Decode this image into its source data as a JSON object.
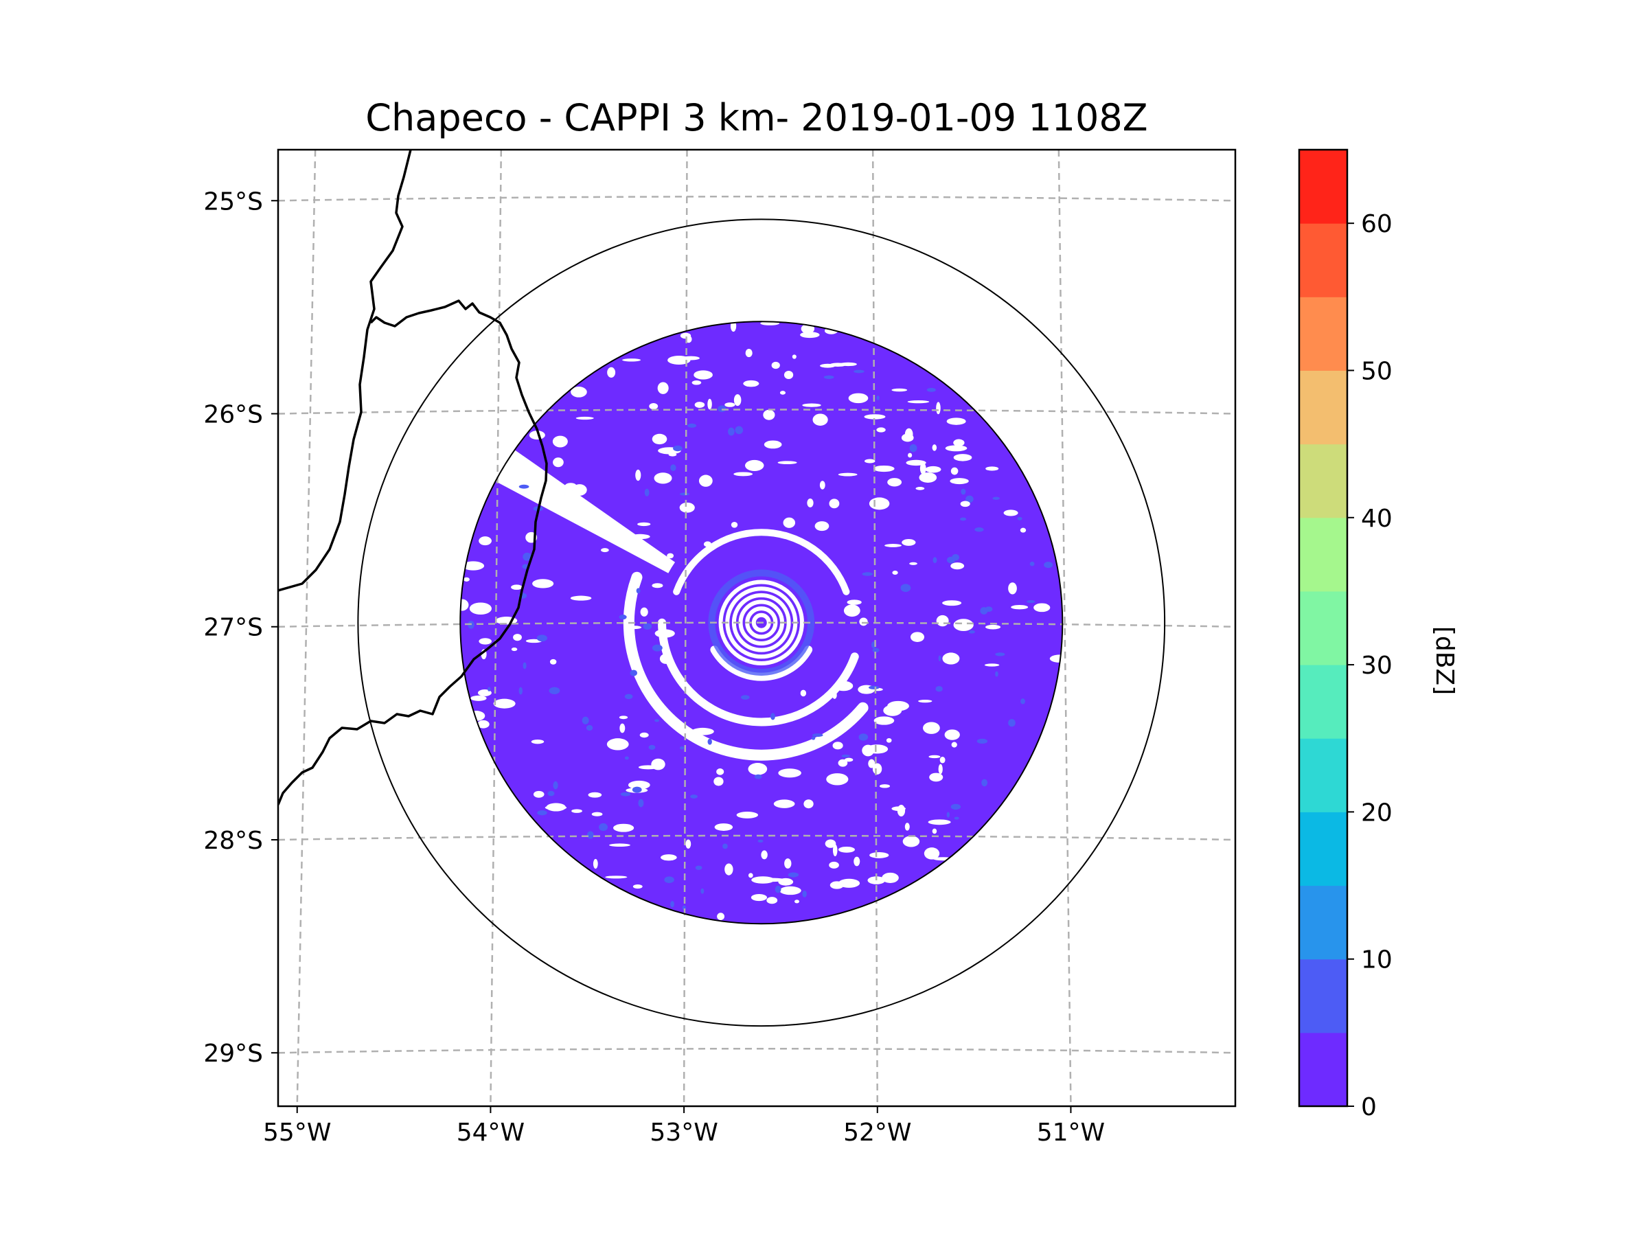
{
  "chart_data": {
    "type": "radar-map",
    "title": "Chapeco - CAPPI 3 km- 2019-01-09 1108Z",
    "radar": {
      "site": "Chapeco",
      "product": "CAPPI 3 km",
      "datetime": "2019-01-09 1108Z",
      "center": {
        "lon": -52.6,
        "lat": -27.0
      },
      "data_radius_deg": 1.62,
      "outer_ring_radius_deg": 2.17
    },
    "x_axis": {
      "range": [
        -55.2,
        -50.05
      ],
      "ticks": [
        {
          "value": -55,
          "label": "55°W"
        },
        {
          "value": -54,
          "label": "54°W"
        },
        {
          "value": -53,
          "label": "53°W"
        },
        {
          "value": -52,
          "label": "52°W"
        },
        {
          "value": -51,
          "label": "51°W"
        }
      ]
    },
    "y_axis": {
      "range": [
        -29.27,
        -24.78
      ],
      "ticks": [
        {
          "value": -25,
          "label": "25°S"
        },
        {
          "value": -26,
          "label": "26°S"
        },
        {
          "value": -27,
          "label": "27°S"
        },
        {
          "value": -28,
          "label": "28°S"
        },
        {
          "value": -29,
          "label": "29°S"
        }
      ]
    },
    "gridlines": true,
    "colorbar": {
      "label": "[dBZ]",
      "min": 0,
      "max": 65,
      "step": 5,
      "colors": [
        "#6e2bff",
        "#4d5cf5",
        "#2894ec",
        "#0bb9e4",
        "#2ed8d4",
        "#56ecbd",
        "#80f6a3",
        "#a5f78d",
        "#cddc7a",
        "#f3be6f",
        "#ff8c4e",
        "#ff5a33",
        "#ff2419"
      ],
      "ticks": [
        {
          "value": 0,
          "label": "0"
        },
        {
          "value": 10,
          "label": "10"
        },
        {
          "value": 20,
          "label": "20"
        },
        {
          "value": 30,
          "label": "30"
        },
        {
          "value": 40,
          "label": "40"
        },
        {
          "value": 50,
          "label": "50"
        },
        {
          "value": 60,
          "label": "60"
        }
      ]
    },
    "echo_color": "#6e2bff",
    "echo_color_secondary": "#4d5cf5"
  }
}
